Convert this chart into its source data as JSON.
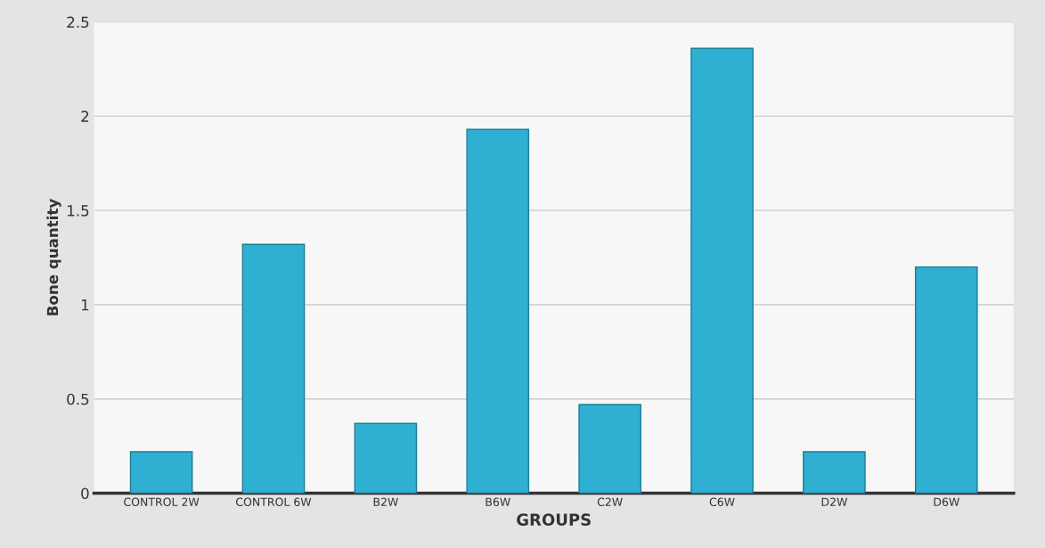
{
  "chart_data": {
    "type": "bar",
    "xlabel": "GROUPS",
    "ylabel": "Bone quantity",
    "categories": [
      "CONTROL 2W",
      "CONTROL 6W",
      "B2W",
      "B6W",
      "C2W",
      "C6W",
      "D2W",
      "D6W"
    ],
    "values": [
      0.22,
      1.32,
      0.37,
      1.93,
      0.47,
      2.36,
      0.22,
      1.2
    ],
    "color": "#2fb0d2",
    "ylim": [
      0,
      2.5
    ],
    "yticks": [
      0,
      0.5,
      1,
      1.5,
      2,
      2.5
    ],
    "grid": "y"
  }
}
